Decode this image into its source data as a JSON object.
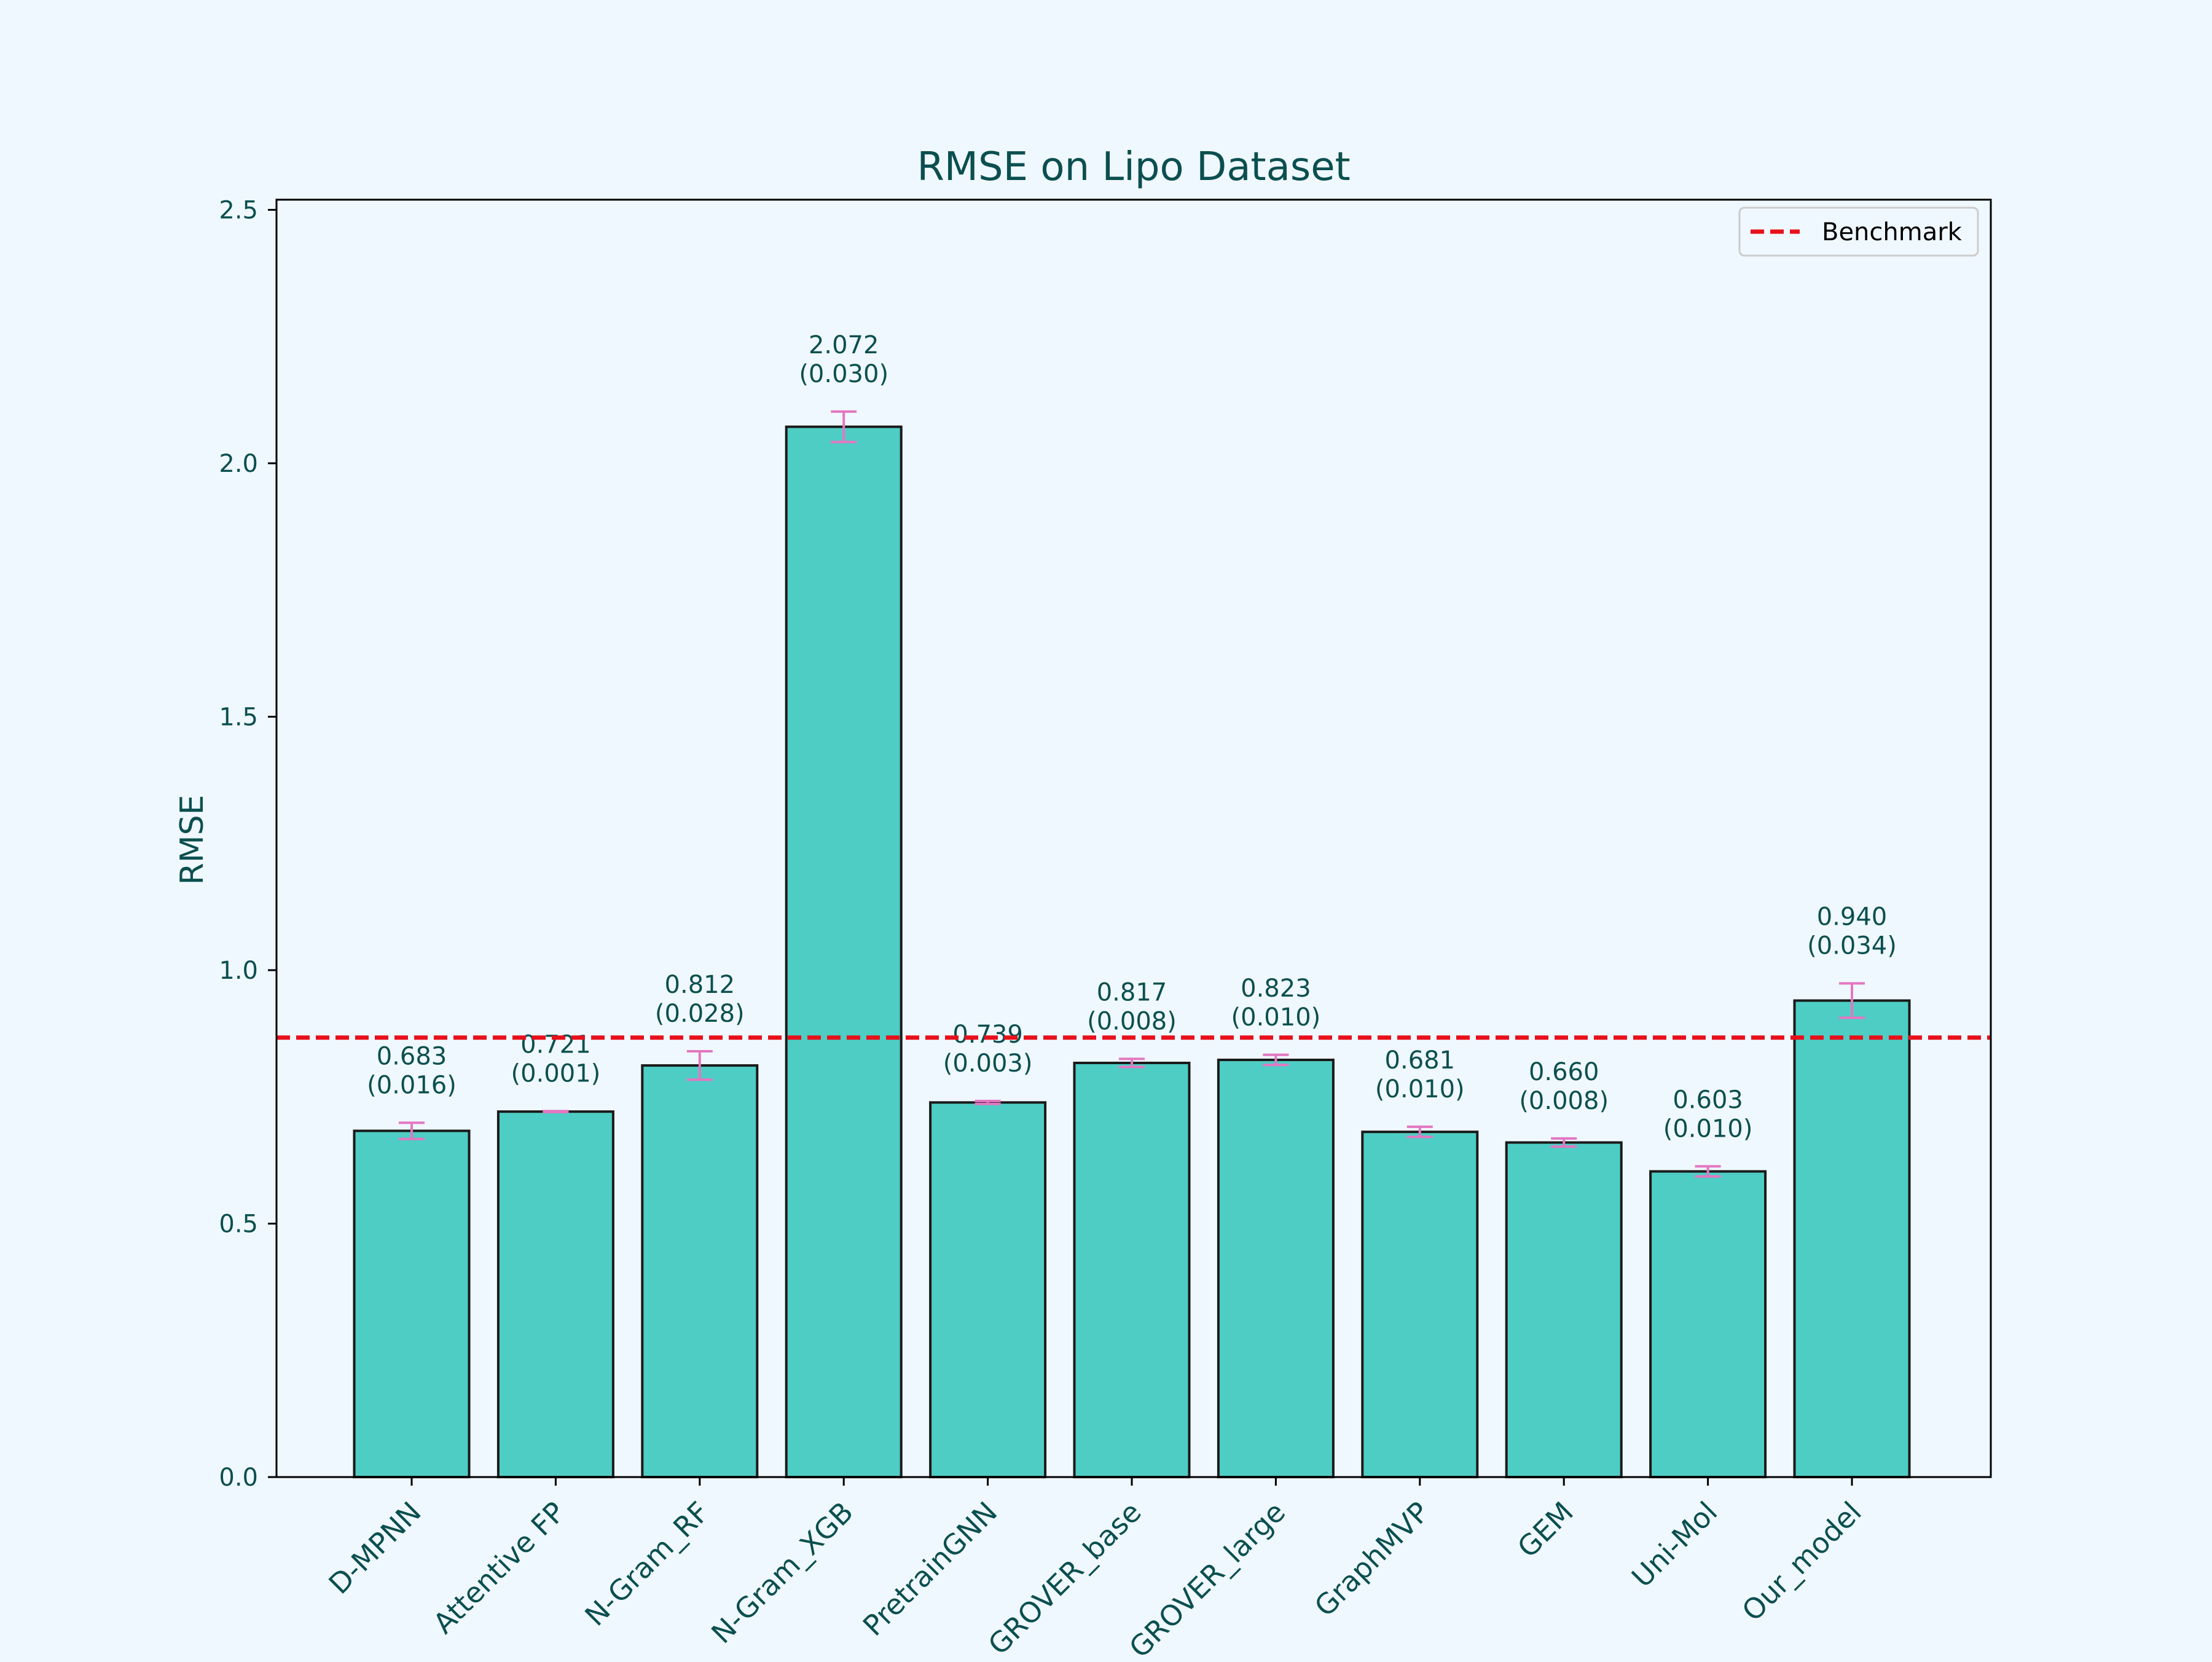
{
  "chart_data": {
    "type": "bar",
    "title": "RMSE on Lipo Dataset",
    "xlabel": "",
    "ylabel": "RMSE",
    "ylim": [
      0,
      2.52
    ],
    "yticks": [
      0.0,
      0.5,
      1.0,
      1.5,
      2.0,
      2.5
    ],
    "ytick_labels": [
      "0.0",
      "0.5",
      "1.0",
      "1.5",
      "2.0",
      "2.5"
    ],
    "categories": [
      "D-MPNN",
      "Attentive FP",
      "N-Gram_RF",
      "N-Gram_XGB",
      "PretrainGNN",
      "GROVER_base",
      "GROVER_large",
      "GraphMVP",
      "GEM",
      "Uni-Mol",
      "Our_model"
    ],
    "series": [
      {
        "values": [
          0.683,
          0.721,
          0.812,
          2.072,
          0.739,
          0.817,
          0.823,
          0.681,
          0.66,
          0.603,
          0.94
        ],
        "errors": [
          0.016,
          0.001,
          0.028,
          0.03,
          0.003,
          0.008,
          0.01,
          0.01,
          0.008,
          0.01,
          0.034
        ]
      }
    ],
    "value_labels": [
      "0.683",
      "0.721",
      "0.812",
      "2.072",
      "0.739",
      "0.817",
      "0.823",
      "0.681",
      "0.660",
      "0.603",
      "0.940"
    ],
    "error_labels": [
      "(0.016)",
      "(0.001)",
      "(0.028)",
      "(0.030)",
      "(0.003)",
      "(0.008)",
      "(0.010)",
      "(0.010)",
      "(0.008)",
      "(0.010)",
      "(0.034)"
    ],
    "benchmark": {
      "name": "Benchmark",
      "value": 0.867
    },
    "legend_position": "top-right",
    "grid": false,
    "colors": {
      "bar_fill": "#4ecdc4",
      "bar_edge": "#1a1a1a",
      "error_bar": "#e377c2",
      "benchmark_line": "#e8101a",
      "text": "#0b4f4f",
      "background": "#f0f8ff"
    }
  }
}
